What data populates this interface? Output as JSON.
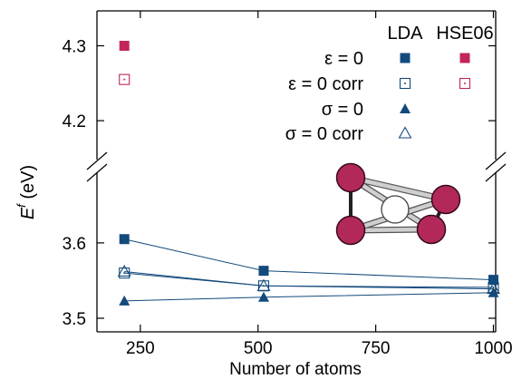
{
  "chart_data": {
    "type": "scatter",
    "xlabel": "Number of atoms",
    "ylabel_main": "E",
    "ylabel_sup": "f",
    "ylabel_unit": "(eV)",
    "x_ticks": [
      "250",
      "500",
      "750",
      "1000"
    ],
    "y_ticks_upper": [
      "4.3",
      "4.2"
    ],
    "y_ticks_lower": [
      "3.6",
      "3.5"
    ],
    "xlim": [
      100,
      1100
    ],
    "ylim_lower": [
      3.5,
      3.7
    ],
    "ylim_upper": [
      4.15,
      4.35
    ],
    "broken_y_axis": true,
    "grid": false,
    "legend_position": "top-right",
    "legend_headers": {
      "lda": "LDA",
      "hse": "HSE06"
    },
    "colors": {
      "lda": "#134a7c",
      "hse": "#c2255c"
    },
    "series": [
      {
        "name": "ε = 0",
        "method": "LDA",
        "marker": "filled-square",
        "x": [
          216,
          512,
          1000
        ],
        "y": [
          3.605,
          3.563,
          3.551
        ]
      },
      {
        "name": "ε = 0 corr",
        "method": "LDA",
        "marker": "open-square-dot",
        "x": [
          216,
          512,
          1000
        ],
        "y": [
          3.56,
          3.543,
          3.541
        ]
      },
      {
        "name": "σ = 0",
        "method": "LDA",
        "marker": "filled-triangle",
        "x": [
          216,
          512,
          1000
        ],
        "y": [
          3.523,
          3.528,
          3.534
        ]
      },
      {
        "name": "σ = 0 corr",
        "method": "LDA",
        "marker": "open-triangle",
        "x": [
          216,
          512,
          1000
        ],
        "y": [
          3.562,
          3.543,
          3.539
        ]
      },
      {
        "name": "ε = 0",
        "method": "HSE06",
        "marker": "filled-square",
        "x": [
          216
        ],
        "y": [
          4.3
        ]
      },
      {
        "name": "ε = 0 corr",
        "method": "HSE06",
        "marker": "open-square-dot",
        "x": [
          216
        ],
        "y": [
          4.255
        ]
      }
    ],
    "legend_entries": [
      "ε = 0",
      "ε = 0 corr",
      "σ = 0",
      "σ = 0 corr"
    ]
  }
}
